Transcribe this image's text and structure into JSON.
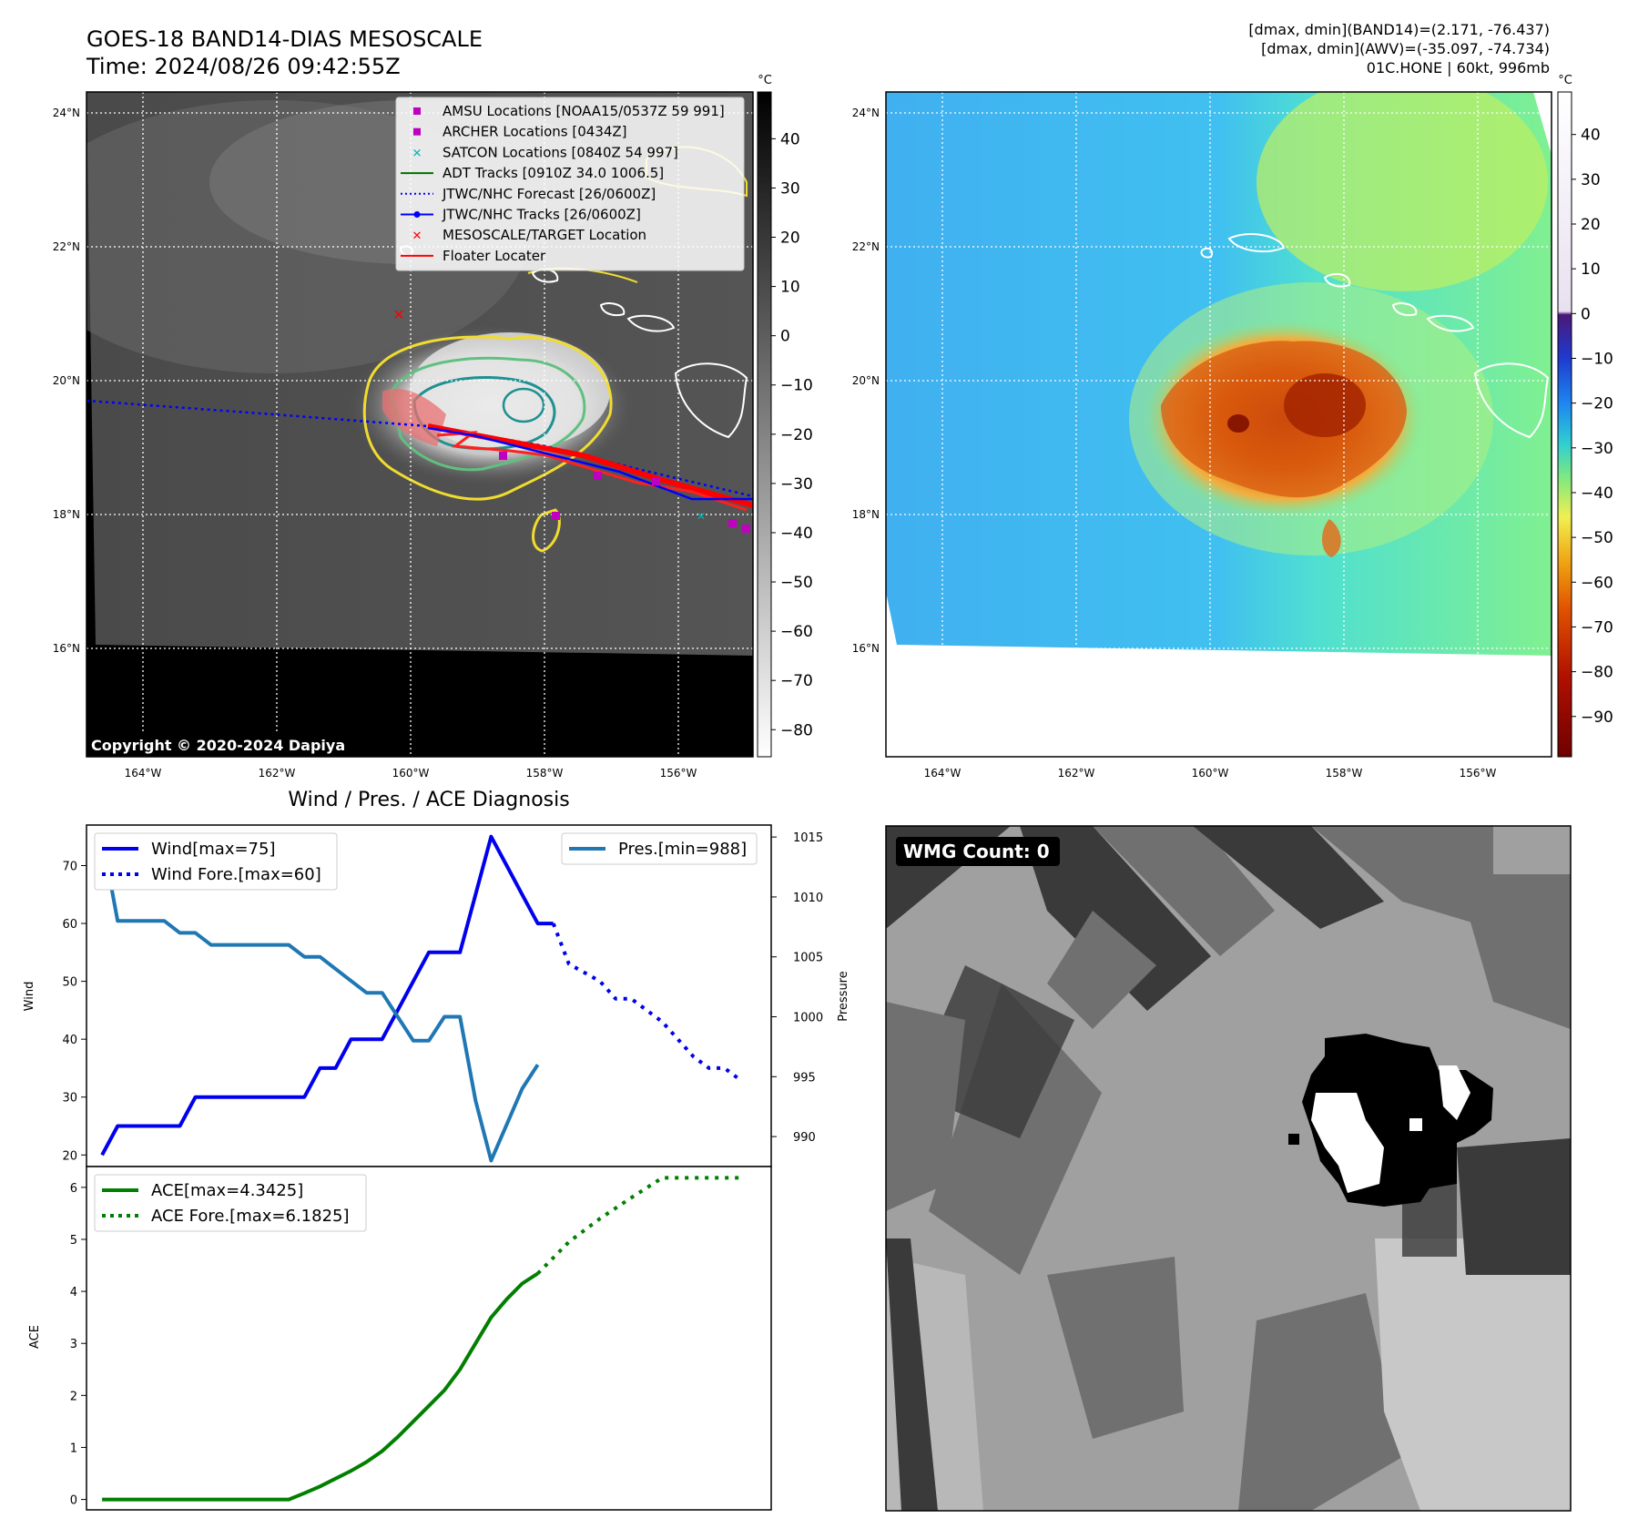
{
  "header": {
    "title_line1": "GOES-18 BAND14-DIAS MESOSCALE",
    "title_line2": "Time: 2024/08/26 09:42:55Z",
    "info_line1": "[dmax, dmin](BAND14)=(2.171, -76.437)",
    "info_line2": "[dmax, dmin](AWV)=(-35.097, -74.734)",
    "info_line3": "01C.HONE | 60kt, 996mb"
  },
  "copyright": "Copyright © 2020-2024 Dapiya",
  "map_axes": {
    "lat_labels": [
      "24°N",
      "22°N",
      "20°N",
      "18°N",
      "16°N"
    ],
    "lon_labels": [
      "164°W",
      "162°W",
      "160°W",
      "158°W",
      "156°W"
    ]
  },
  "colorbar_gray": {
    "unit": "°C",
    "ticks": [
      "40",
      "30",
      "20",
      "10",
      "0",
      "−10",
      "−20",
      "−30",
      "−40",
      "−50",
      "−60",
      "−70",
      "−80"
    ]
  },
  "colorbar_color": {
    "unit": "°C",
    "ticks": [
      "40",
      "30",
      "20",
      "10",
      "0",
      "−10",
      "−20",
      "−30",
      "−40",
      "−50",
      "−60",
      "−70",
      "−80",
      "−90"
    ]
  },
  "map_legend": [
    {
      "label": "AMSU Locations [NOAA15/0537Z 59 991]",
      "marker": "square",
      "color": "#c000c0"
    },
    {
      "label": "ARCHER Locations [0434Z]",
      "marker": "square",
      "color": "#c000c0"
    },
    {
      "label": "SATCON Locations [0840Z 54 997]",
      "marker": "x",
      "color": "#00b5b5"
    },
    {
      "label": "ADT Tracks [0910Z 34.0 1006.5]",
      "marker": "line",
      "color": "#007000"
    },
    {
      "label": "JTWC/NHC Forecast [26/0600Z]",
      "marker": "dotted",
      "color": "#0000ff"
    },
    {
      "label": "JTWC/NHC Tracks [26/0600Z]",
      "marker": "line-dot",
      "color": "#0000ff"
    },
    {
      "label": "MESOSCALE/TARGET Location",
      "marker": "x",
      "color": "#ff0000"
    },
    {
      "label": "Floater Locater",
      "marker": "line",
      "color": "#ff0000"
    }
  ],
  "diagnosis": {
    "title": "Wind / Pres. / ACE Diagnosis",
    "wind_axis_label": "Wind",
    "pressure_axis_label": "Pressure",
    "ace_axis_label": "ACE",
    "wind_ticks": [
      "70",
      "60",
      "50",
      "40",
      "30",
      "20"
    ],
    "pressure_ticks": [
      "1015",
      "1010",
      "1005",
      "1000",
      "995",
      "990"
    ],
    "ace_ticks": [
      "6",
      "5",
      "4",
      "3",
      "2",
      "1",
      "0"
    ],
    "legend_wind": "Wind[max=75]",
    "legend_wind_fore": "Wind Fore.[max=60]",
    "legend_pres": "Pres.[min=988]",
    "legend_ace": "ACE[max=4.3425]",
    "legend_ace_fore": "ACE Fore.[max=6.1825]"
  },
  "wmg": {
    "label": "WMG Count: 0"
  },
  "chart_data": [
    {
      "type": "line",
      "panel": "wind-pressure",
      "x": [
        0,
        1,
        2,
        3,
        4,
        5,
        6,
        7,
        8,
        9,
        10,
        11,
        12,
        13,
        14,
        15,
        16,
        17,
        18,
        19,
        20,
        21,
        22,
        23,
        24,
        25,
        26,
        27,
        28,
        29,
        30,
        31,
        32,
        33,
        34,
        35,
        36,
        37,
        38,
        39,
        40
      ],
      "series": [
        {
          "name": "Wind[max=75]",
          "axis": "wind",
          "color": "#0000ee",
          "style": "solid",
          "x": [
            0,
            1,
            2,
            3,
            4,
            5,
            6,
            7,
            8,
            9,
            10,
            11,
            12,
            13,
            14,
            15,
            16,
            17,
            18,
            19,
            20,
            21,
            22,
            23,
            24,
            25,
            26,
            27,
            28,
            29
          ],
          "values": [
            20,
            25,
            25,
            25,
            25,
            25,
            30,
            30,
            30,
            30,
            30,
            30,
            30,
            30,
            35,
            35,
            40,
            40,
            40,
            45,
            50,
            55,
            55,
            55,
            65,
            75,
            70,
            65,
            60,
            60
          ]
        },
        {
          "name": "Wind Fore.[max=60]",
          "axis": "wind",
          "color": "#0000ee",
          "style": "dotted",
          "x": [
            29,
            30,
            32,
            33,
            34,
            35,
            36,
            37,
            38,
            39,
            40,
            41
          ],
          "values": [
            60,
            53,
            50,
            47,
            47,
            45,
            43,
            40,
            37,
            35,
            35,
            33
          ]
        },
        {
          "name": "Pres.[min=988]",
          "axis": "pressure",
          "color": "#1f77b4",
          "style": "solid",
          "x": [
            0,
            1,
            2,
            3,
            4,
            5,
            6,
            7,
            8,
            9,
            10,
            11,
            12,
            13,
            14,
            15,
            16,
            17,
            18,
            19,
            20,
            21,
            22,
            23,
            24,
            25,
            26,
            27,
            28
          ],
          "values": [
            1015,
            1008,
            1008,
            1008,
            1008,
            1007,
            1007,
            1006,
            1006,
            1006,
            1006,
            1006,
            1006,
            1005,
            1005,
            1004,
            1003,
            1002,
            1002,
            1000,
            998,
            998,
            1000,
            1000,
            993,
            988,
            991,
            994,
            996
          ]
        }
      ],
      "wind_ylim": [
        18,
        77
      ],
      "pressure_ylim": [
        987.5,
        1016
      ],
      "xlim": [
        -1,
        43
      ]
    },
    {
      "type": "line",
      "panel": "ace",
      "series": [
        {
          "name": "ACE[max=4.3425]",
          "color": "#007f00",
          "style": "solid",
          "x": [
            0,
            1,
            2,
            3,
            4,
            5,
            6,
            7,
            8,
            9,
            10,
            11,
            12,
            13,
            14,
            15,
            16,
            17,
            18,
            19,
            20,
            21,
            22,
            23,
            24,
            25,
            26,
            27,
            28
          ],
          "values": [
            0,
            0,
            0,
            0,
            0,
            0,
            0,
            0,
            0,
            0,
            0,
            0,
            0,
            0.12,
            0.25,
            0.4,
            0.55,
            0.72,
            0.93,
            1.2,
            1.5,
            1.8,
            2.1,
            2.5,
            3.0,
            3.5,
            3.85,
            4.15,
            4.3425
          ]
        },
        {
          "name": "ACE Fore.[max=6.1825]",
          "color": "#007f00",
          "style": "dotted",
          "x": [
            28,
            30,
            32,
            34,
            36,
            38,
            40,
            41
          ],
          "values": [
            4.3425,
            4.95,
            5.4,
            5.8,
            6.1825,
            6.1825,
            6.1825,
            6.1825
          ]
        }
      ],
      "ylim": [
        -0.2,
        6.4
      ],
      "xlim": [
        -1,
        43
      ]
    }
  ]
}
